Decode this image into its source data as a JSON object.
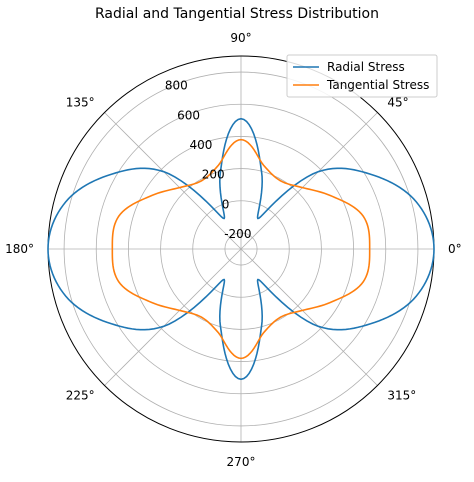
{
  "chart_data": {
    "type": "polar-line",
    "title": "Radial and Tangential Stress Distribution",
    "r_range": [
      -300,
      900
    ],
    "r_ticks": [
      "-200",
      "0",
      "200",
      "400",
      "600",
      "800"
    ],
    "r_tick_values": [
      -200,
      0,
      200,
      400,
      600,
      800
    ],
    "angle_ticks": [
      "0°",
      "45°",
      "90°",
      "135°",
      "180°",
      "225°",
      "270°",
      "315°"
    ],
    "angle_tick_values": [
      0,
      45,
      90,
      135,
      180,
      225,
      270,
      315
    ],
    "grid": true,
    "legend_position": "top-right",
    "theta_deg": [
      0,
      15,
      30,
      45,
      60,
      75,
      90,
      105,
      120,
      135,
      150,
      165,
      180,
      195,
      210,
      225,
      240,
      255,
      270,
      285,
      300,
      315,
      330,
      345,
      360
    ],
    "series": [
      {
        "name": "Radial Stress",
        "color": "#1f77b4",
        "values": [
          900,
          829,
          630,
          380,
          -80,
          195,
          510,
          195,
          -80,
          380,
          630,
          829,
          900,
          829,
          630,
          380,
          -80,
          195,
          510,
          195,
          -80,
          380,
          630,
          829,
          900
        ]
      },
      {
        "name": "Tangential Stress",
        "color": "#ff7f0e",
        "values": [
          500,
          487,
          355,
          240,
          190,
          240,
          380,
          240,
          190,
          240,
          355,
          487,
          500,
          487,
          355,
          240,
          190,
          240,
          380,
          240,
          190,
          240,
          355,
          487,
          500
        ]
      }
    ]
  }
}
